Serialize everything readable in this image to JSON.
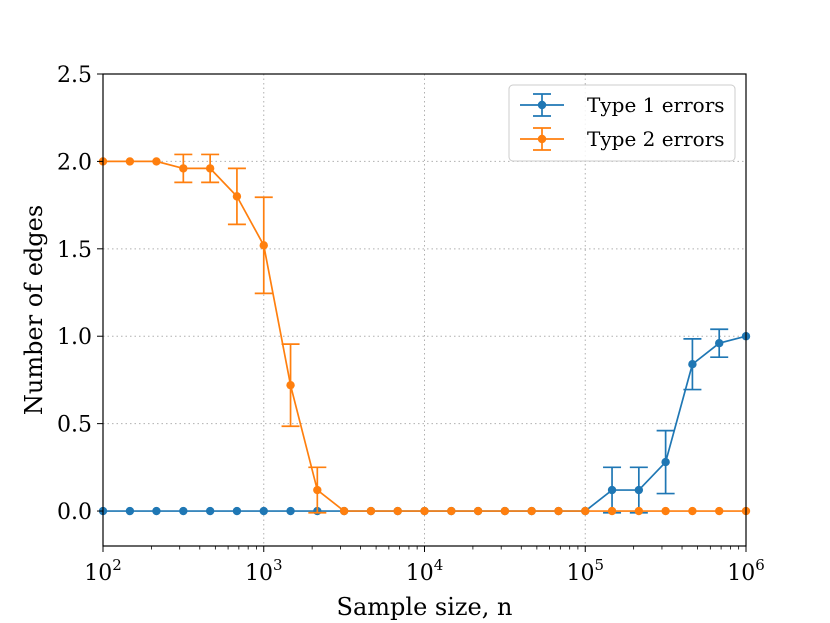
{
  "chart_data": {
    "type": "line",
    "title": "",
    "xlabel": "Sample size, n",
    "ylabel": "Number of edges",
    "xscale": "log",
    "xlim": [
      100,
      1000000
    ],
    "ylim": [
      -0.2,
      2.5
    ],
    "grid": true,
    "legend_position": "top-right",
    "x_ticks": [
      {
        "value": 100,
        "base": "10",
        "exp": "2"
      },
      {
        "value": 1000,
        "base": "10",
        "exp": "3"
      },
      {
        "value": 10000,
        "base": "10",
        "exp": "4"
      },
      {
        "value": 100000,
        "base": "10",
        "exp": "5"
      },
      {
        "value": 1000000,
        "base": "10",
        "exp": "6"
      }
    ],
    "y_ticks": [
      {
        "value": 0.0,
        "label": "0.0"
      },
      {
        "value": 0.5,
        "label": "0.5"
      },
      {
        "value": 1.0,
        "label": "1.0"
      },
      {
        "value": 1.5,
        "label": "1.5"
      },
      {
        "value": 2.0,
        "label": "2.0"
      },
      {
        "value": 2.5,
        "label": "2.5"
      }
    ],
    "x": [
      100,
      147,
      215,
      316,
      464,
      681,
      1000,
      1468,
      2154,
      3162,
      4642,
      6813,
      10000,
      14678,
      21544,
      31623,
      46416,
      68129,
      100000,
      146780,
      215443,
      316228,
      464159,
      681292,
      1000000
    ],
    "series": [
      {
        "name": "Type 1 errors",
        "color": "#1f77b4",
        "values": [
          0,
          0,
          0,
          0,
          0,
          0,
          0,
          0,
          0,
          0,
          0,
          0,
          0,
          0,
          0,
          0,
          0,
          0,
          0,
          0.12,
          0.12,
          0.28,
          0.84,
          0.96,
          1.0
        ],
        "errors": [
          0,
          0,
          0,
          0,
          0,
          0,
          0,
          0,
          0,
          0,
          0,
          0,
          0,
          0,
          0,
          0,
          0,
          0,
          0,
          0.13,
          0.13,
          0.18,
          0.145,
          0.08,
          0
        ]
      },
      {
        "name": "Type 2 errors",
        "color": "#ff7f0e",
        "values": [
          2.0,
          2.0,
          2.0,
          1.96,
          1.96,
          1.8,
          1.52,
          0.72,
          0.12,
          0,
          0,
          0,
          0,
          0,
          0,
          0,
          0,
          0,
          0,
          0,
          0,
          0,
          0,
          0,
          0
        ],
        "errors": [
          0,
          0,
          0,
          0.08,
          0.08,
          0.16,
          0.275,
          0.235,
          0.13,
          0,
          0,
          0,
          0,
          0,
          0,
          0,
          0,
          0,
          0,
          0,
          0,
          0,
          0,
          0,
          0
        ]
      }
    ]
  }
}
